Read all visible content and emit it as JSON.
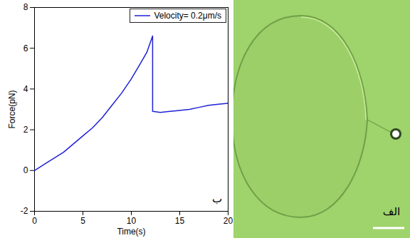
{
  "chart_data": {
    "type": "line",
    "xlabel": "Time(s)",
    "ylabel": "Force(pN)",
    "x": [
      0,
      1,
      2,
      3,
      4,
      5,
      6,
      7,
      8,
      9,
      10,
      11,
      11.6,
      12.2,
      12.2,
      13,
      14,
      15,
      16,
      17,
      18,
      19,
      20
    ],
    "series": [
      {
        "name": "Velocity= 0.2μm/s",
        "color": "#1f1fd6",
        "values": [
          0,
          0.3,
          0.6,
          0.9,
          1.3,
          1.7,
          2.1,
          2.6,
          3.2,
          3.8,
          4.5,
          5.3,
          5.8,
          6.6,
          2.9,
          2.85,
          2.9,
          2.95,
          3.0,
          3.1,
          3.2,
          3.25,
          3.3
        ]
      }
    ],
    "xlim": [
      0,
      20
    ],
    "xticks": [
      0,
      5,
      10,
      15,
      20
    ],
    "ylim": [
      -2,
      8
    ],
    "yticks": [
      -2,
      0,
      2,
      4,
      6,
      8
    ],
    "legend": "upper right",
    "annotations": [
      "ب"
    ]
  },
  "image": {
    "type": "micrograph",
    "label": "الف"
  }
}
